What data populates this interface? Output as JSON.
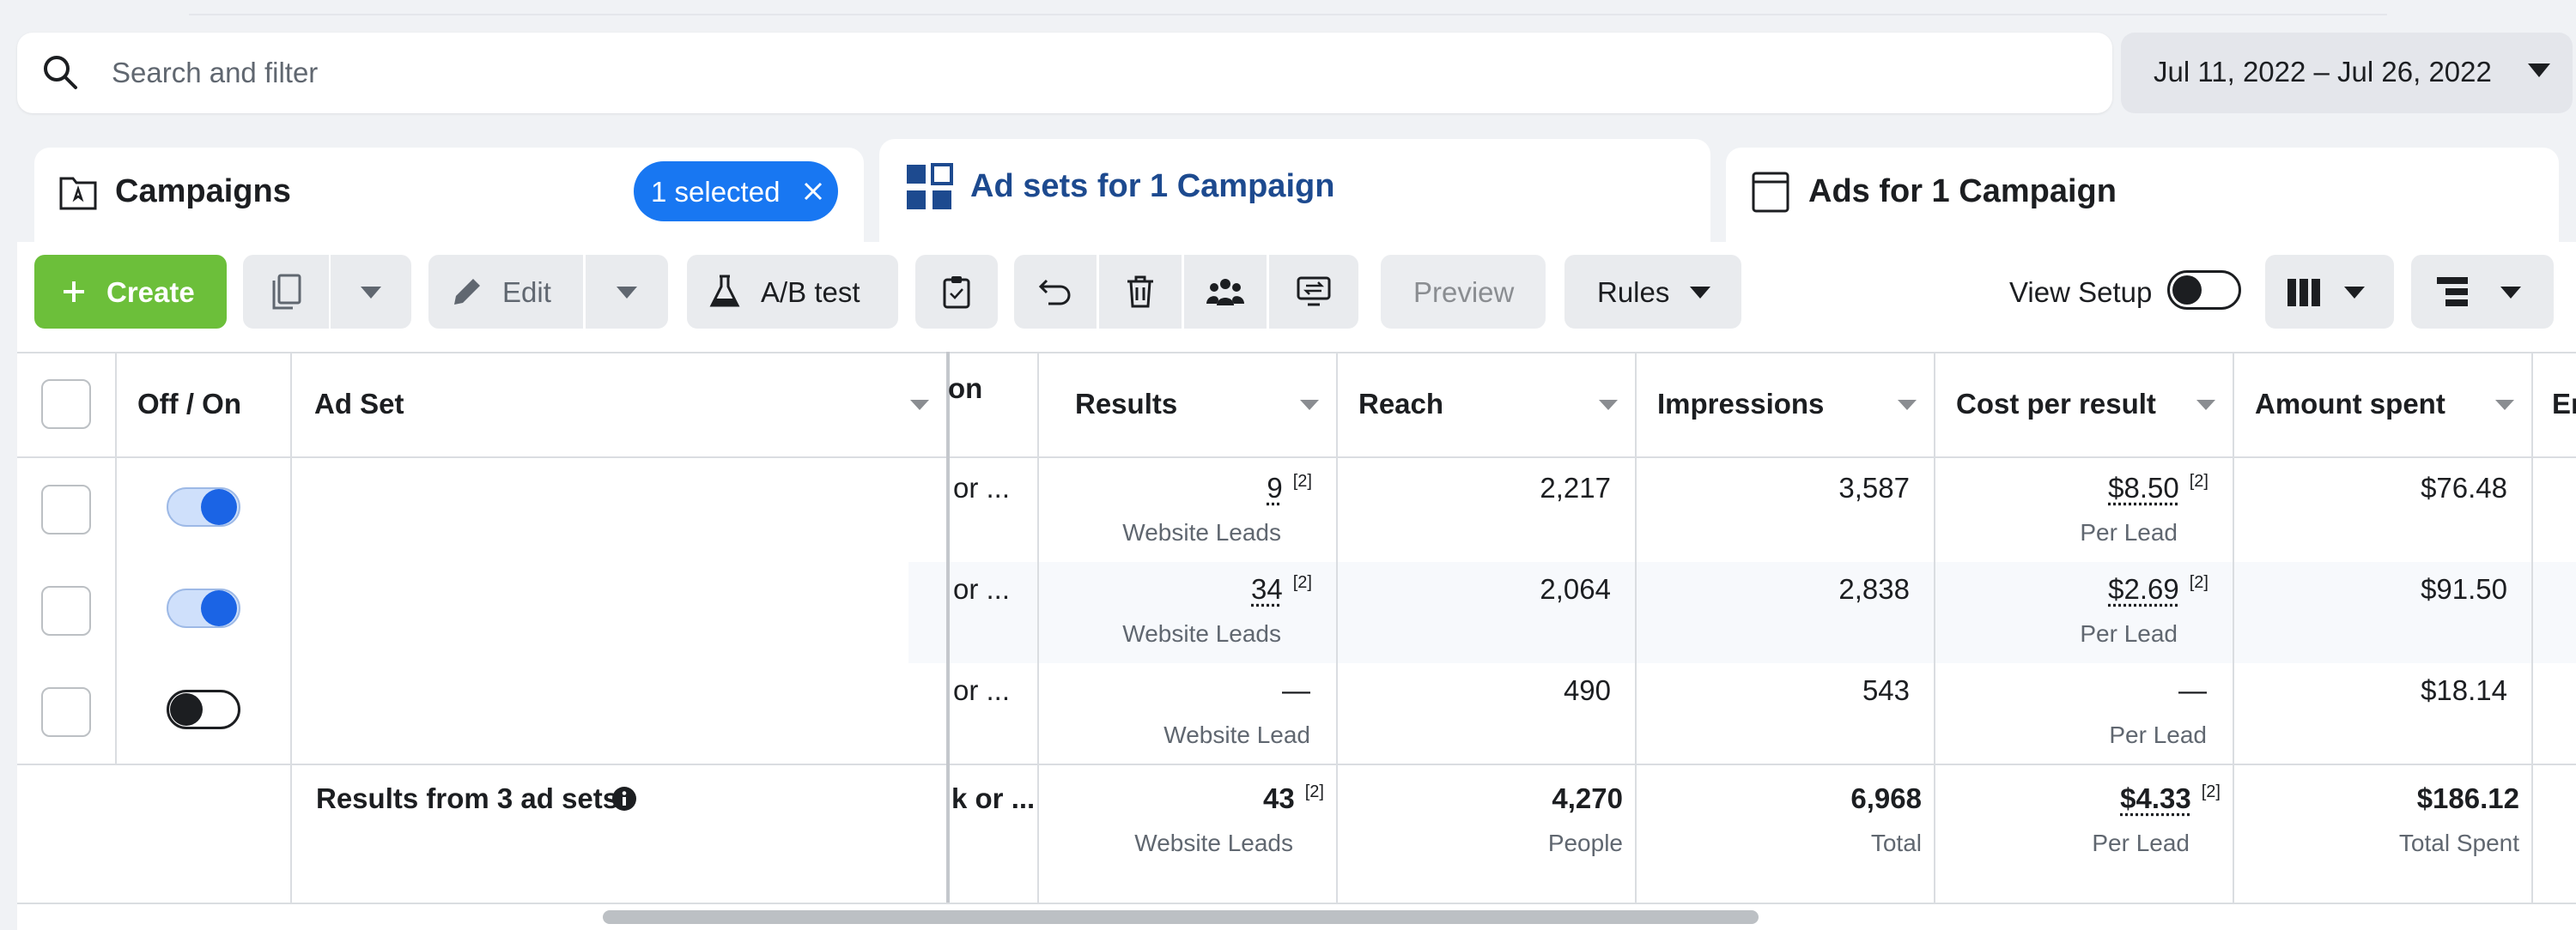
{
  "search": {
    "placeholder": "Search and filter"
  },
  "date_range": {
    "label": "Jul 11, 2022 – Jul 26, 2022"
  },
  "tabs": {
    "campaigns": {
      "label": "Campaigns",
      "badge": "1 selected"
    },
    "adsets": {
      "label": "Ad sets for 1 Campaign"
    },
    "ads": {
      "label": "Ads for 1 Campaign"
    }
  },
  "toolbar": {
    "create": "Create",
    "edit": "Edit",
    "ab_test": "A/B test",
    "preview": "Preview",
    "rules": "Rules",
    "view_setup": "View Setup"
  },
  "table": {
    "headers": {
      "toggle": "Off / On",
      "ad_set": "Ad Set",
      "partial": "on",
      "results": "Results",
      "reach": "Reach",
      "impressions": "Impressions",
      "cpr": "Cost per result",
      "amount": "Amount spent",
      "next": "Er"
    },
    "rows": [
      {
        "toggle": "on",
        "clipped": "or ...",
        "results": "9",
        "results_ref": "[2]",
        "results_sub": "Website Leads",
        "reach": "2,217",
        "impressions": "3,587",
        "cpr": "$8.50",
        "cpr_ref": "[2]",
        "cpr_sub": "Per Lead",
        "amount": "$76.48"
      },
      {
        "toggle": "on",
        "clipped": "or ...",
        "results": "34",
        "results_ref": "[2]",
        "results_sub": "Website Leads",
        "reach": "2,064",
        "impressions": "2,838",
        "cpr": "$2.69",
        "cpr_ref": "[2]",
        "cpr_sub": "Per Lead",
        "amount": "$91.50"
      },
      {
        "toggle": "off",
        "clipped": "or ...",
        "results": "—",
        "results_sub": "Website Lead",
        "reach": "490",
        "impressions": "543",
        "cpr": "—",
        "cpr_sub": "Per Lead",
        "amount": "$18.14"
      }
    ],
    "summary": {
      "label": "Results from 3 ad sets",
      "clipped": "k or ...",
      "results": "43",
      "results_ref": "[2]",
      "results_sub": "Website Leads",
      "reach": "4,270",
      "reach_sub": "People",
      "impressions": "6,968",
      "impressions_sub": "Total",
      "cpr": "$4.33",
      "cpr_ref": "[2]",
      "cpr_sub": "Per Lead",
      "amount": "$186.12",
      "amount_sub": "Total Spent"
    }
  }
}
